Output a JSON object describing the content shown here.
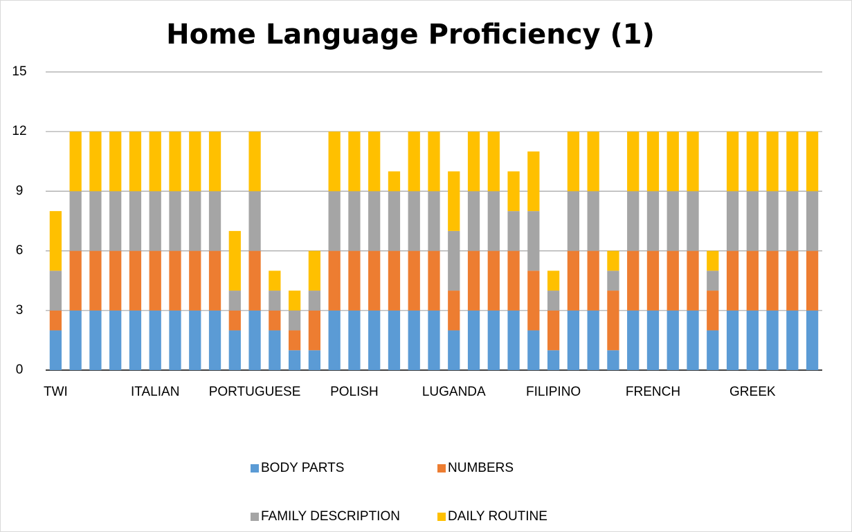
{
  "chart_data": {
    "type": "stacked_bar",
    "title": "Home Language Proficiency (1)",
    "categories": [
      "TWI",
      null,
      null,
      null,
      null,
      "ITALIAN",
      null,
      null,
      null,
      null,
      "PORTUGUESE",
      null,
      null,
      null,
      null,
      "POLISH",
      null,
      null,
      null,
      null,
      "LUGANDA",
      null,
      null,
      null,
      null,
      "FILIPINO",
      null,
      null,
      null,
      null,
      "FRENCH",
      null,
      null,
      null,
      null,
      "GREEK",
      null,
      null,
      null
    ],
    "series": [
      {
        "name": "BODY PARTS",
        "color": "#5b9bd5",
        "values": [
          2,
          3,
          3,
          3,
          3,
          3,
          3,
          3,
          3,
          2,
          3,
          2,
          1,
          1,
          3,
          3,
          3,
          3,
          3,
          3,
          2,
          3,
          3,
          3,
          2,
          1,
          3,
          3,
          1,
          3,
          3,
          3,
          3,
          2,
          3,
          3,
          3,
          3,
          3
        ]
      },
      {
        "name": "NUMBERS",
        "color": "#ed7d31",
        "values": [
          1,
          3,
          3,
          3,
          3,
          3,
          3,
          3,
          3,
          1,
          3,
          1,
          1,
          2,
          3,
          3,
          3,
          3,
          3,
          3,
          2,
          3,
          3,
          3,
          3,
          2,
          3,
          3,
          3,
          3,
          3,
          3,
          3,
          2,
          3,
          3,
          3,
          3,
          3
        ]
      },
      {
        "name": "FAMILY DESCRIPTION",
        "color": "#a5a5a5",
        "values": [
          2,
          3,
          3,
          3,
          3,
          3,
          3,
          3,
          3,
          1,
          3,
          1,
          1,
          1,
          3,
          3,
          3,
          3,
          3,
          3,
          3,
          3,
          3,
          2,
          3,
          1,
          3,
          3,
          1,
          3,
          3,
          3,
          3,
          1,
          3,
          3,
          3,
          3,
          3
        ]
      },
      {
        "name": "DAILY ROUTINE",
        "color": "#ffc000",
        "values": [
          3,
          3,
          3,
          3,
          3,
          3,
          3,
          3,
          3,
          3,
          3,
          1,
          1,
          2,
          3,
          3,
          3,
          1,
          3,
          3,
          3,
          3,
          3,
          2,
          3,
          1,
          3,
          3,
          1,
          3,
          3,
          3,
          3,
          1,
          3,
          3,
          3,
          3,
          3
        ]
      }
    ],
    "ylim": [
      0,
      15
    ],
    "yticks": [
      0,
      3,
      6,
      9,
      12,
      15
    ],
    "grid": true
  }
}
